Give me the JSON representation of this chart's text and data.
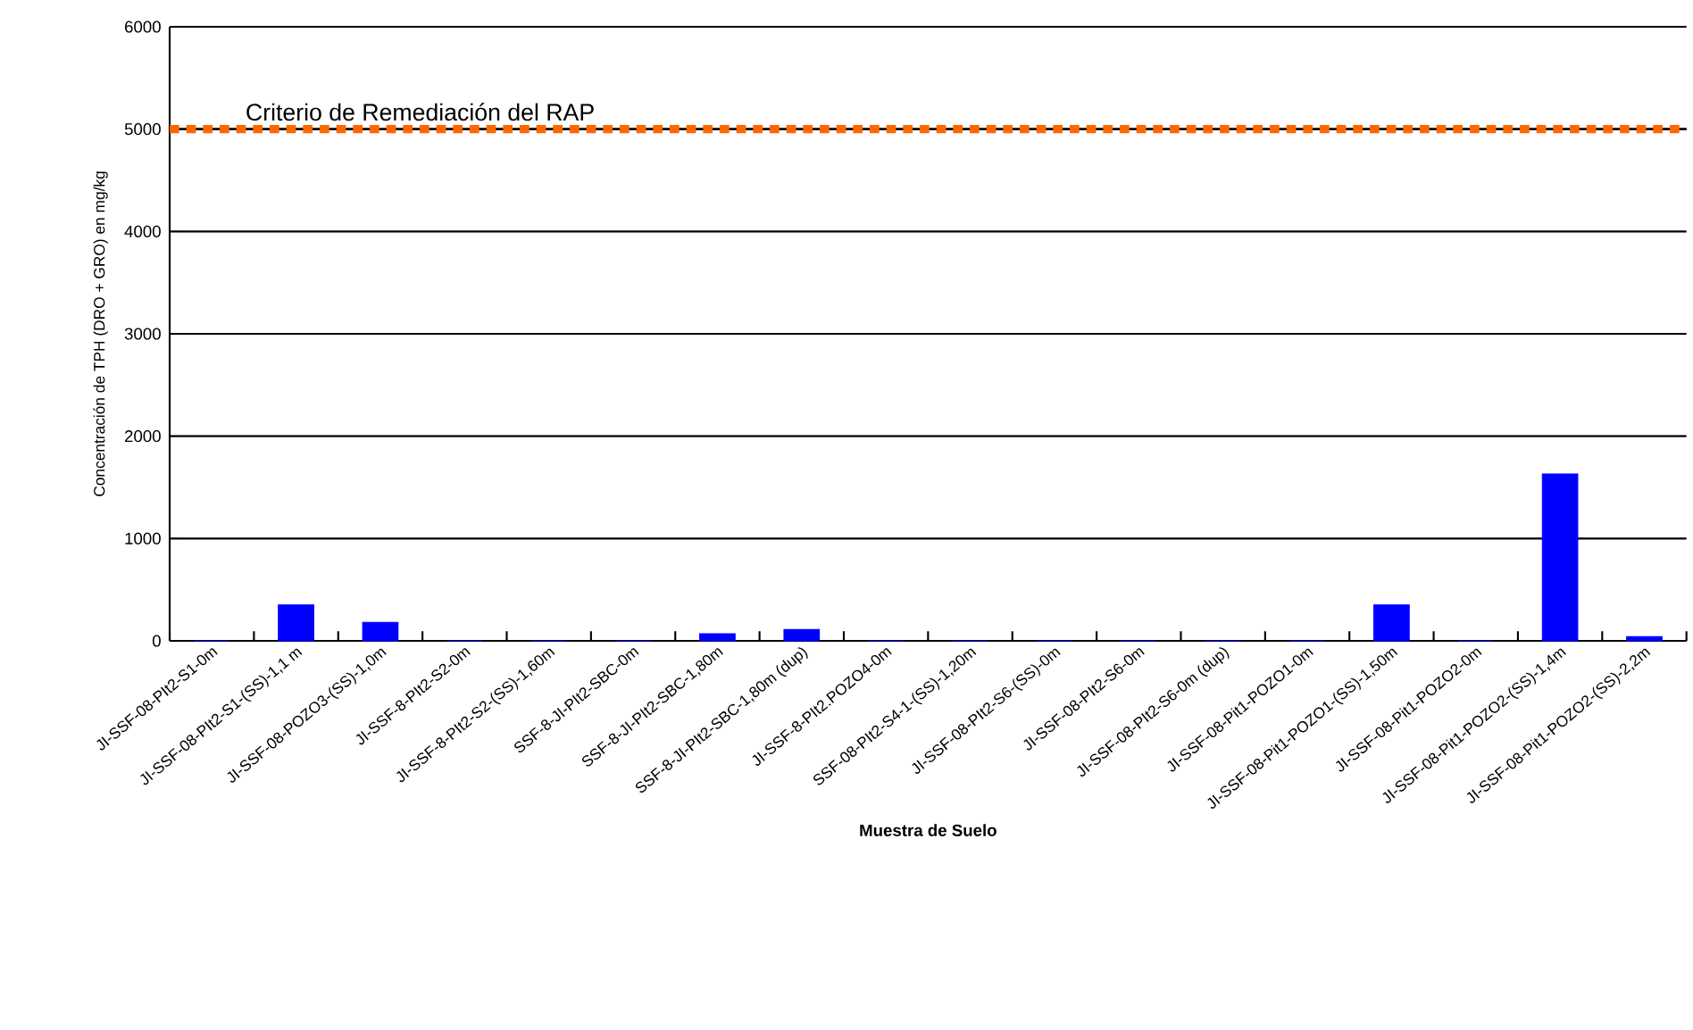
{
  "chart_data": {
    "type": "bar",
    "xlabel": "Muestra de Suelo",
    "ylabel": "Concentración de TPH (DRO + GRO) en mg/kg",
    "categories": [
      "JI-SSF-08-PIt2-S1-0m",
      "JI-SSF-08-PIt2-S1-(SS)-1,1 m",
      "JI-SSF-08-POZO3-(SS)-1,0m",
      "JI-SSF-8-PIt2-S2-0m",
      "JI-SSF-8-PIt2-S2-(SS)-1,60m",
      "SSF-8-JI-PIt2-SBC-0m",
      "SSF-8-JI-PIt2-SBC-1,80m",
      "SSF-8-JI-PIt2-SBC-1,80m (dup)",
      "JI-SSF-8-PIt2.POZO4-0m",
      "SSF-08-PIt2-S4-1-(SS)-1,20m",
      "JI-SSF-08-PIt2-S6-(SS)-0m",
      "JI-SSF-08-PIt2-S6-0m",
      "JI-SSF-08-PIt2-S6-0m (dup)",
      "JI-SSF-08-Pit1-POZO1-0m",
      "JI-SSF-08-Pit1-POZO1-(SS)-1,50m",
      "JI-SSF-08-Pit1-POZO2-0m",
      "JI-SSF-08-Pit1-POZO2-(SS)-1,4m",
      "JI-SSF-08-Pit1-POZO2-(SS)-2,2m"
    ],
    "values": [
      0,
      350,
      180,
      0,
      0,
      0,
      70,
      110,
      0,
      0,
      0,
      0,
      0,
      0,
      350,
      0,
      1630,
      40
    ],
    "color": "#0000ff",
    "ylim": [
      0,
      6000
    ],
    "yticks": [
      0,
      1000,
      2000,
      3000,
      4000,
      5000,
      6000
    ],
    "grid": "y",
    "ref_lines": [
      {
        "axis": "y",
        "value": 5000,
        "label": "Criterio de Remediación del RAP",
        "color": "#ff6600",
        "line_style": "dashed"
      }
    ]
  }
}
